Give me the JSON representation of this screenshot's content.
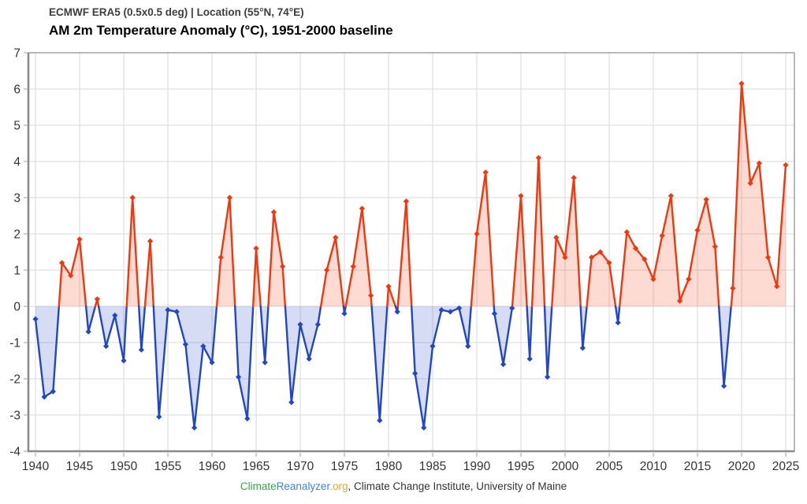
{
  "header": {
    "source_line": "ECMWF ERA5 (0.5x0.5 deg) | Location (55°N, 74°E)",
    "title_line": "AM 2m Temperature Anomaly (°C), 1951-2000 baseline"
  },
  "footer": {
    "link_part_climate": "Climate",
    "link_part_reanalyzer": "Reanalyzer",
    "link_part_org": ".org",
    "credit_rest": ", Climate Change Institute, University of Maine",
    "colors": {
      "climate": "#3aa648",
      "reanalyzer": "#4186d5",
      "org": "#f5a31d",
      "rest": "#333333"
    }
  },
  "chart_data": {
    "type": "line",
    "title": "AM 2m Temperature Anomaly (°C), 1951-2000 baseline",
    "subtitle": "ECMWF ERA5 (0.5x0.5 deg) | Location (55°N, 74°E)",
    "xlabel": "",
    "ylabel": "",
    "baseline": 0,
    "ylim": [
      -4,
      7
    ],
    "xlim": [
      1939.2,
      2026.3
    ],
    "grid": true,
    "legend": "none",
    "y_ticks": [
      7,
      6,
      5,
      4,
      3,
      2,
      1,
      0,
      -1,
      -2,
      -3,
      -4
    ],
    "x_ticks": [
      1940,
      1945,
      1950,
      1955,
      1960,
      1965,
      1970,
      1975,
      1980,
      1985,
      1990,
      1995,
      2000,
      2005,
      2010,
      2015,
      2020,
      2025
    ],
    "years": [
      1940,
      1941,
      1942,
      1943,
      1944,
      1945,
      1946,
      1947,
      1948,
      1949,
      1950,
      1951,
      1952,
      1953,
      1954,
      1955,
      1956,
      1957,
      1958,
      1959,
      1960,
      1961,
      1962,
      1963,
      1964,
      1965,
      1966,
      1967,
      1968,
      1969,
      1970,
      1971,
      1972,
      1973,
      1974,
      1975,
      1976,
      1977,
      1978,
      1979,
      1980,
      1981,
      1982,
      1983,
      1984,
      1985,
      1986,
      1987,
      1988,
      1989,
      1990,
      1991,
      1992,
      1993,
      1994,
      1995,
      1996,
      1997,
      1998,
      1999,
      2000,
      2001,
      2002,
      2003,
      2004,
      2005,
      2006,
      2007,
      2008,
      2009,
      2010,
      2011,
      2012,
      2013,
      2014,
      2015,
      2016,
      2017,
      2018,
      2019,
      2020,
      2021,
      2022,
      2023,
      2024,
      2025
    ],
    "values": [
      -0.35,
      -2.5,
      -2.35,
      1.2,
      0.85,
      1.85,
      -0.7,
      0.2,
      -1.1,
      -0.25,
      -1.5,
      3.0,
      -1.2,
      1.8,
      -3.05,
      -0.1,
      -0.15,
      -1.05,
      -3.35,
      -1.1,
      -1.55,
      1.35,
      3.0,
      -1.95,
      -3.1,
      1.6,
      -1.55,
      2.6,
      1.1,
      -2.65,
      -0.5,
      -1.45,
      -0.5,
      1.0,
      1.9,
      -0.2,
      1.1,
      2.7,
      0.3,
      -3.15,
      0.55,
      -0.15,
      2.9,
      -1.85,
      -3.35,
      -1.1,
      -0.1,
      -0.15,
      -0.05,
      -1.1,
      2.0,
      3.7,
      -0.2,
      -1.6,
      -0.05,
      3.05,
      -1.45,
      4.1,
      -1.95,
      1.9,
      1.35,
      3.55,
      -1.15,
      1.35,
      1.5,
      1.2,
      -0.45,
      2.05,
      1.6,
      1.3,
      0.75,
      1.95,
      3.05,
      0.15,
      0.75,
      2.1,
      2.95,
      1.65,
      -2.2,
      0.5,
      6.15,
      3.4,
      3.95,
      1.35,
      0.55,
      3.9
    ],
    "style": {
      "positive_line_color": "#f0380f",
      "negative_line_color": "#2247c3",
      "positive_fill_color": "rgba(242,58,16,0.19)",
      "negative_fill_color": "rgba(34,71,195,0.19)",
      "grid_color": "#d8d8d8",
      "border_color": "#9b9b9b",
      "axis_edge_color": "#8a8a8a",
      "tick_color": "#b9c3e8",
      "label_color": "#333333",
      "marker": "diamond"
    }
  }
}
